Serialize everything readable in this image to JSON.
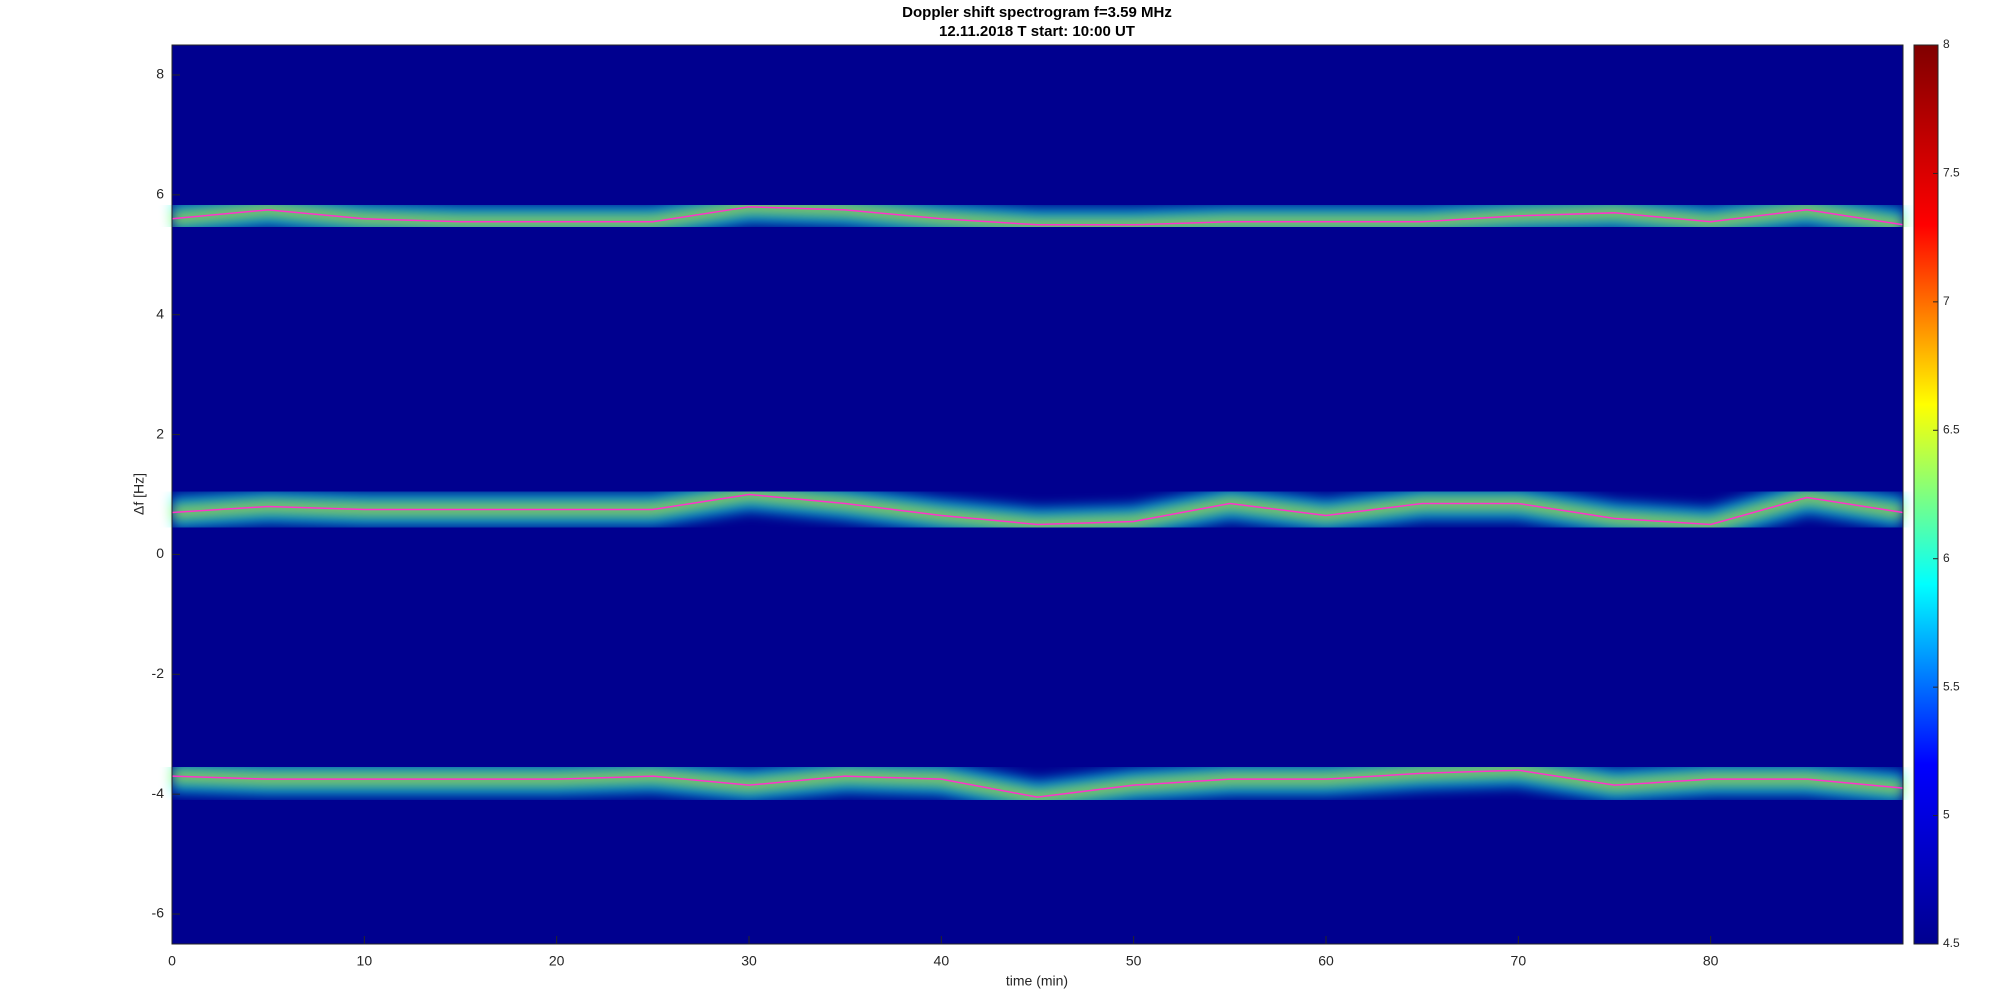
{
  "chart_data": {
    "type": "line",
    "title": "Doppler shift spectrogram f=3.59 MHz",
    "subtitle": "12.11.2018   T start: 10:00 UT",
    "x_label": "time (min)",
    "y_label": "Δf [Hz]",
    "x": [
      0,
      5,
      10,
      15,
      20,
      25,
      30,
      35,
      40,
      45,
      50,
      55,
      60,
      65,
      70,
      75,
      80,
      85,
      90
    ],
    "series": [
      {
        "color": "#ff33cc",
        "values": [
          5.6,
          5.75,
          5.6,
          5.55,
          5.55,
          5.55,
          5.8,
          5.75,
          5.6,
          5.5,
          5.5,
          5.55,
          5.55,
          5.55,
          5.65,
          5.7,
          5.55,
          5.75,
          5.5
        ]
      },
      {
        "color": "#ff33cc",
        "values": [
          0.7,
          0.8,
          0.75,
          0.75,
          0.75,
          0.75,
          1.0,
          0.85,
          0.65,
          0.5,
          0.55,
          0.85,
          0.65,
          0.85,
          0.85,
          0.6,
          0.5,
          0.95,
          0.7
        ]
      },
      {
        "color": "#ff33cc",
        "values": [
          -3.7,
          -3.75,
          -3.75,
          -3.75,
          -3.75,
          -3.7,
          -3.85,
          -3.7,
          -3.75,
          -4.05,
          -3.85,
          -3.75,
          -3.75,
          -3.65,
          -3.6,
          -3.85,
          -3.75,
          -3.75,
          -3.9
        ]
      }
    ],
    "xlim": [
      0,
      90
    ],
    "ylim": [
      -6.5,
      8.5
    ],
    "xticks": [
      0,
      10,
      20,
      30,
      40,
      50,
      60,
      70,
      80
    ],
    "yticks": [
      -6,
      -4,
      -2,
      0,
      2,
      4,
      6,
      8
    ],
    "background": "#00008f",
    "colormap": [
      "#00008f",
      "#0000ff",
      "#00ffff",
      "#ffff00",
      "#ff0000",
      "#800000"
    ],
    "colorbar_lim": [
      4.5,
      8
    ],
    "colorbar_ticks": [
      4.5,
      5,
      5.5,
      6,
      6.5,
      7,
      7.5,
      8
    ]
  }
}
